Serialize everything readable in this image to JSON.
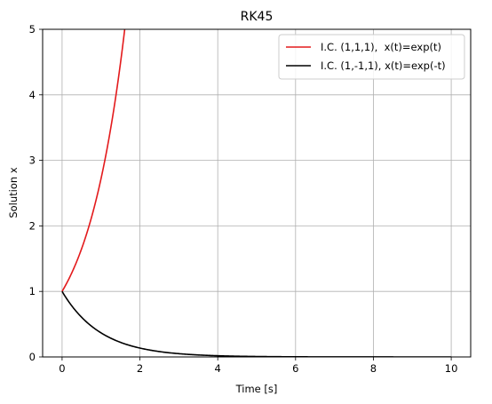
{
  "chart_data": {
    "type": "line",
    "title": "RK45",
    "xlabel": "Time [s]",
    "ylabel": "Solution x",
    "xlim": [
      -0.5,
      10.5
    ],
    "ylim": [
      0,
      5
    ],
    "xticks": [
      0,
      2,
      4,
      6,
      8,
      10
    ],
    "yticks": [
      0,
      1,
      2,
      3,
      4,
      5
    ],
    "grid": true,
    "legend_position": "top-right",
    "series": [
      {
        "name": "I.C. (1,1,1),  x(t)=exp(t)",
        "color": "#e31a1c",
        "function": "exp(t)",
        "x_range": [
          0,
          10
        ]
      },
      {
        "name": "I.C. (1,-1,1), x(t)=exp(-t)",
        "color": "#000000",
        "function": "exp(-t)",
        "x_range": [
          0,
          10
        ]
      }
    ]
  }
}
